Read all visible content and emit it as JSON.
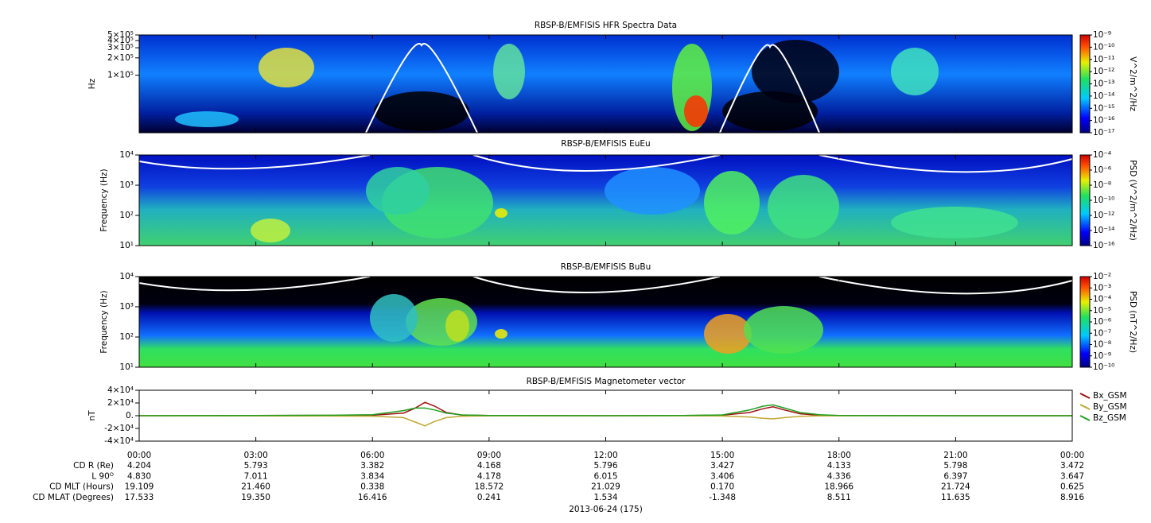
{
  "chart_data": [
    {
      "type": "spectrogram",
      "title": "RBSP-B/EMFISIS  HFR Spectra Data",
      "ylabel": "Hz",
      "log_y": true,
      "ylim": [
        10000,
        500000
      ],
      "yticks": [
        {
          "value": 100000,
          "label": "1×10⁵"
        },
        {
          "value": 200000,
          "label": "2×10⁵"
        },
        {
          "value": 300000,
          "label": "3×10⁵"
        },
        {
          "value": 400000,
          "label": "4×10⁵"
        },
        {
          "value": 500000,
          "label": "5×10⁵"
        }
      ],
      "colorbar": {
        "label": "V^2/m^2/Hz",
        "lim": [
          1e-17,
          1e-09
        ],
        "ticks": [
          {
            "value": 1e-09,
            "label": "10⁻⁹"
          },
          {
            "value": 1e-10,
            "label": "10⁻¹⁰"
          },
          {
            "value": 1e-11,
            "label": "10⁻¹¹"
          },
          {
            "value": 1e-12,
            "label": "10⁻¹²"
          },
          {
            "value": 1e-13,
            "label": "10⁻¹³"
          },
          {
            "value": 1e-14,
            "label": "10⁻¹⁴"
          },
          {
            "value": 1e-15,
            "label": "10⁻¹⁵"
          },
          {
            "value": 1e-16,
            "label": "10⁻¹⁶"
          },
          {
            "value": 1e-17,
            "label": "10⁻¹⁷"
          }
        ]
      }
    },
    {
      "type": "spectrogram",
      "title": "RBSP-B/EMFISIS  EuEu",
      "ylabel": "Frequency (Hz)",
      "log_y": true,
      "ylim": [
        10,
        10000
      ],
      "yticks": [
        {
          "value": 10,
          "label": "10¹"
        },
        {
          "value": 100,
          "label": "10²"
        },
        {
          "value": 1000,
          "label": "10³"
        },
        {
          "value": 10000,
          "label": "10⁴"
        }
      ],
      "colorbar": {
        "label": "PSD (V^2/m^2/Hz)",
        "lim": [
          1e-16,
          0.0001
        ],
        "ticks": [
          {
            "value": 0.0001,
            "label": "10⁻⁴"
          },
          {
            "value": 1e-06,
            "label": "10⁻⁶"
          },
          {
            "value": 1e-08,
            "label": "10⁻⁸"
          },
          {
            "value": 1e-10,
            "label": "10⁻¹⁰"
          },
          {
            "value": 1e-12,
            "label": "10⁻¹²"
          },
          {
            "value": 1e-14,
            "label": "10⁻¹⁴"
          },
          {
            "value": 1e-16,
            "label": "10⁻¹⁶"
          }
        ]
      }
    },
    {
      "type": "spectrogram",
      "title": "RBSP-B/EMFISIS  BuBu",
      "ylabel": "Frequency (Hz)",
      "log_y": true,
      "ylim": [
        10,
        10000
      ],
      "yticks": [
        {
          "value": 10,
          "label": "10¹"
        },
        {
          "value": 100,
          "label": "10²"
        },
        {
          "value": 1000,
          "label": "10³"
        },
        {
          "value": 10000,
          "label": "10⁴"
        }
      ],
      "colorbar": {
        "label": "PSD (nT^2/Hz)",
        "lim": [
          1e-10,
          0.01
        ],
        "ticks": [
          {
            "value": 0.01,
            "label": "10⁻²"
          },
          {
            "value": 0.001,
            "label": "10⁻³"
          },
          {
            "value": 0.0001,
            "label": "10⁻⁴"
          },
          {
            "value": 1e-05,
            "label": "10⁻⁵"
          },
          {
            "value": 1e-06,
            "label": "10⁻⁶"
          },
          {
            "value": 1e-07,
            "label": "10⁻⁷"
          },
          {
            "value": 1e-08,
            "label": "10⁻⁸"
          },
          {
            "value": 1e-09,
            "label": "10⁻⁹"
          },
          {
            "value": 1e-10,
            "label": "10⁻¹⁰"
          }
        ]
      }
    },
    {
      "type": "line",
      "title": "RBSP-B/EMFISIS  Magnetometer vector",
      "ylabel": "nT",
      "xlim": [
        0,
        24
      ],
      "xticks": [
        {
          "value": 0,
          "label": "00:00"
        },
        {
          "value": 3,
          "label": "03:00"
        },
        {
          "value": 6,
          "label": "06:00"
        },
        {
          "value": 9,
          "label": "09:00"
        },
        {
          "value": 12,
          "label": "12:00"
        },
        {
          "value": 15,
          "label": "15:00"
        },
        {
          "value": 18,
          "label": "18:00"
        },
        {
          "value": 21,
          "label": "21:00"
        },
        {
          "value": 24,
          "label": "00:00"
        }
      ],
      "ylim": [
        -40000,
        40000
      ],
      "yticks": [
        {
          "value": 40000,
          "label": "4×10⁴"
        },
        {
          "value": 20000,
          "label": "2×10⁴"
        },
        {
          "value": 0,
          "label": "0."
        },
        {
          "value": -20000,
          "label": "-2×10⁴"
        },
        {
          "value": -40000,
          "label": "-4×10⁴"
        }
      ],
      "x": [
        0,
        3,
        5,
        6,
        6.8,
        7.1,
        7.35,
        7.6,
        7.9,
        8.3,
        9,
        12,
        14,
        15,
        15.7,
        16.05,
        16.3,
        16.6,
        17,
        17.5,
        18,
        21,
        24
      ],
      "series": [
        {
          "name": "Bx_GSM",
          "color": "#a01010",
          "values": [
            0,
            200,
            500,
            800,
            4000,
            12000,
            21000,
            15000,
            5000,
            1000,
            300,
            0,
            200,
            800,
            5000,
            11000,
            14000,
            9000,
            3000,
            800,
            200,
            0,
            0
          ]
        },
        {
          "name": "By_GSM",
          "color": "#c0a830",
          "values": [
            0,
            -200,
            -500,
            -800,
            -3000,
            -10000,
            -16000,
            -9000,
            -3000,
            -700,
            -200,
            0,
            -100,
            -500,
            -2000,
            -4000,
            -5000,
            -3000,
            -1000,
            -300,
            -100,
            0,
            0
          ]
        },
        {
          "name": "Bz_GSM",
          "color": "#20a020",
          "values": [
            0,
            300,
            700,
            1500,
            8000,
            12000,
            12000,
            9000,
            4000,
            1200,
            400,
            0,
            300,
            1200,
            9000,
            15000,
            17000,
            12000,
            5000,
            1500,
            400,
            0,
            0
          ]
        }
      ]
    }
  ],
  "ephemeris": [
    {
      "label": "CD R (Re)",
      "values": [
        "4.204",
        "5.793",
        "3.382",
        "4.168",
        "5.796",
        "3.427",
        "4.133",
        "5.798",
        "3.472"
      ]
    },
    {
      "label": "L 90ᴼ",
      "values": [
        "4.830",
        "7.011",
        "3.834",
        "4.178",
        "6.015",
        "3.406",
        "4.336",
        "6.397",
        "3.647"
      ]
    },
    {
      "label": "CD MLT (Hours)",
      "values": [
        "19.109",
        "21.460",
        "0.338",
        "18.572",
        "21.029",
        "0.170",
        "18.966",
        "21.724",
        "0.625"
      ]
    },
    {
      "label": "CD MLAT (Degrees)",
      "values": [
        "17.533",
        "19.350",
        "16.416",
        "0.241",
        "1.534",
        "-1.348",
        "8.511",
        "11.635",
        "8.916"
      ]
    }
  ],
  "date_label": "2013-06-24 (175)"
}
